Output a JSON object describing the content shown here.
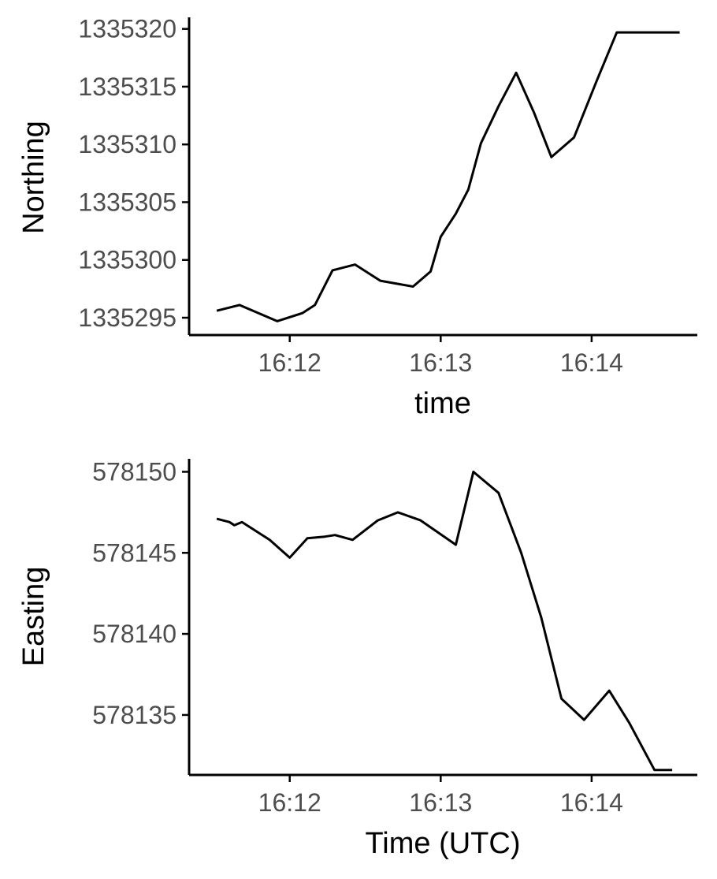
{
  "chart_data": [
    {
      "type": "line",
      "xlabel": "time",
      "ylabel": "Northing",
      "xlim": [
        "16:11:20",
        "16:14:42"
      ],
      "ylim": [
        1335293.5,
        1335321
      ],
      "x_ticks": [
        "16:12",
        "16:13",
        "16:14"
      ],
      "y_ticks": [
        1335295,
        1335300,
        1335305,
        1335310,
        1335315,
        1335320
      ],
      "grid": false,
      "series": [
        {
          "color": "#000000",
          "x": [
            "16:11:31",
            "16:11:40",
            "16:11:55",
            "16:12:05",
            "16:12:10",
            "16:12:17",
            "16:12:26",
            "16:12:36",
            "16:12:49",
            "16:12:56",
            "16:13:00",
            "16:13:06",
            "16:13:11",
            "16:13:16",
            "16:13:23",
            "16:13:30",
            "16:13:37",
            "16:13:44",
            "16:13:53",
            "16:14:02",
            "16:14:10",
            "16:14:18",
            "16:14:27",
            "16:14:35"
          ],
          "values": [
            1335295.6,
            1335296.1,
            1335294.7,
            1335295.4,
            1335296.1,
            1335299.1,
            1335299.6,
            1335298.2,
            1335297.7,
            1335299.0,
            1335302.0,
            1335304.0,
            1335306.1,
            1335310.1,
            1335313.3,
            1335316.2,
            1335312.8,
            1335308.9,
            1335310.6,
            1335315.5,
            1335319.7,
            1335319.7,
            1335319.7,
            1335319.7
          ]
        }
      ]
    },
    {
      "type": "line",
      "xlabel": "Time (UTC)",
      "ylabel": "Easting",
      "xlim": [
        "16:11:20",
        "16:14:42"
      ],
      "ylim": [
        578131.3,
        578150.8
      ],
      "x_ticks": [
        "16:12",
        "16:13",
        "16:14"
      ],
      "y_ticks": [
        578135,
        578140,
        578145,
        578150
      ],
      "grid": false,
      "series": [
        {
          "color": "#000000",
          "x": [
            "16:11:31",
            "16:11:36",
            "16:11:38",
            "16:11:41",
            "16:11:52",
            "16:12:00",
            "16:12:07",
            "16:12:14",
            "16:12:18",
            "16:12:25",
            "16:12:35",
            "16:12:43",
            "16:12:52",
            "16:13:06",
            "16:13:13",
            "16:13:23",
            "16:13:32",
            "16:13:40",
            "16:13:48",
            "16:13:57",
            "16:14:07",
            "16:14:15",
            "16:14:25",
            "16:14:32"
          ],
          "values": [
            578147.1,
            578146.9,
            578146.7,
            578146.9,
            578145.8,
            578144.7,
            578145.9,
            578146.0,
            578146.1,
            578145.8,
            578147.0,
            578147.5,
            578147.0,
            578145.5,
            578150.0,
            578148.7,
            578145.0,
            578141.0,
            578136.0,
            578134.7,
            578136.5,
            578134.5,
            578131.6,
            578131.6
          ]
        }
      ]
    }
  ]
}
